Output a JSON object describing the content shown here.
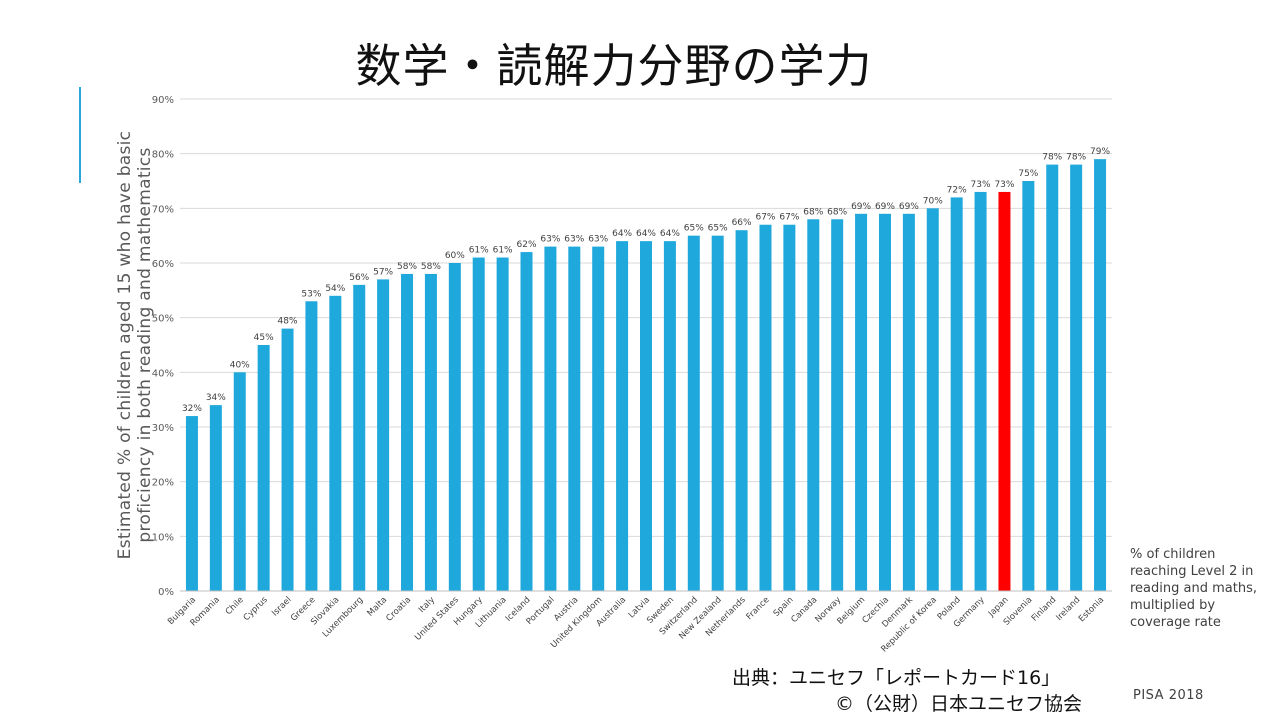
{
  "title": "数学・読解力分野の学力",
  "y_axis_lines": [
    "Estimated % of children aged 15 who have basic",
    "proficiency in both reading and mathematics"
  ],
  "note_lines": [
    "% of children",
    "reaching Level 2 in",
    "reading and maths,",
    "multiplied by",
    "coverage rate"
  ],
  "source_line1": "出典：ユニセフ「レポートカード16」",
  "source_line2": "©（公財）日本ユニセフ協会",
  "pisa_label": "PISA 2018",
  "colors": {
    "bar": "#1ea8dc",
    "highlight": "#ff0000",
    "grid": "#d9d9d9",
    "accent": "#2aa7d8"
  },
  "chart_data": {
    "type": "bar",
    "title": "数学・読解力分野の学力",
    "ylabel": "Estimated % of children aged 15 who have basic proficiency in both reading and mathematics",
    "xlabel": "",
    "ylim": [
      0,
      90
    ],
    "y_ticks": [
      0,
      10,
      20,
      30,
      40,
      50,
      60,
      70,
      80,
      90
    ],
    "y_tick_labels": [
      "0%",
      "10%",
      "20%",
      "30%",
      "40%",
      "50%",
      "60%",
      "70%",
      "80%",
      "90%"
    ],
    "highlight_category": "Japan",
    "grid": true,
    "categories": [
      "Bulgaria",
      "Romania",
      "Chile",
      "Cyprus",
      "Israel",
      "Greece",
      "Slovakia",
      "Luxembourg",
      "Malta",
      "Croatia",
      "Italy",
      "United States",
      "Hungary",
      "Lithuania",
      "Iceland",
      "Portugal",
      "Austria",
      "United Kingdom",
      "Australia",
      "Latvia",
      "Sweden",
      "Switzerland",
      "New Zealand",
      "Netherlands",
      "France",
      "Spain",
      "Canada",
      "Norway",
      "Belgium",
      "Czechia",
      "Denmark",
      "Republic of Korea",
      "Poland",
      "Germany",
      "Japan",
      "Slovenia",
      "Finland",
      "Ireland",
      "Estonia"
    ],
    "values": [
      32,
      34,
      40,
      45,
      48,
      53,
      54,
      56,
      57,
      58,
      58,
      60,
      61,
      61,
      62,
      63,
      63,
      63,
      64,
      64,
      64,
      65,
      65,
      66,
      67,
      67,
      68,
      68,
      69,
      69,
      69,
      70,
      72,
      73,
      73,
      75,
      78,
      78,
      79
    ],
    "data_labels": [
      "32%",
      "34%",
      "40%",
      "45%",
      "48%",
      "53%",
      "54%",
      "56%",
      "57%",
      "58%",
      "58%",
      "60%",
      "61%",
      "61%",
      "62%",
      "63%",
      "63%",
      "63%",
      "64%",
      "64%",
      "64%",
      "65%",
      "65%",
      "66%",
      "67%",
      "67%",
      "68%",
      "68%",
      "69%",
      "69%",
      "69%",
      "70%",
      "72%",
      "73%",
      "73%",
      "75%",
      "78%",
      "78%",
      "79%"
    ]
  }
}
